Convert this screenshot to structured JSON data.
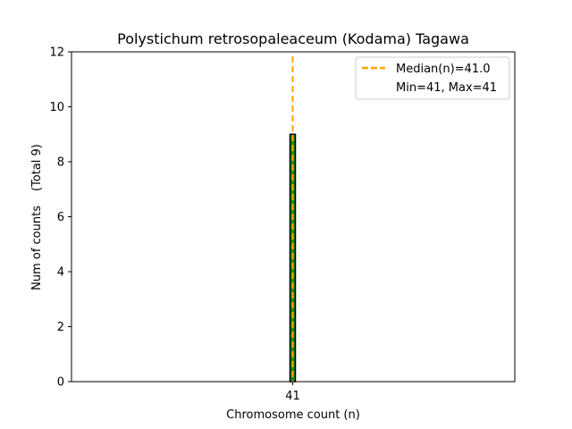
{
  "chart_data": {
    "type": "bar",
    "title": "Polystichum retrosopaleaceum (Kodama) Tagawa",
    "xlabel": "Chromosome count (n)",
    "ylabel": "Num of counts",
    "ylabel_total": "(Total 9)",
    "categories": [
      "41"
    ],
    "values": [
      9
    ],
    "ylim": [
      0,
      12
    ],
    "yticks": [
      0,
      2,
      4,
      6,
      8,
      10,
      12
    ],
    "median": 41.0,
    "legend": {
      "placement": "top-right",
      "entries": [
        "Median(n)=41.0",
        "Min=41, Max=41"
      ]
    },
    "colors": {
      "bar_fill": "#1a8a1a",
      "bar_edge": "#000000",
      "bar_inner_dash": "#1a8a1a",
      "median_line": "#ffa500"
    },
    "grid": false
  }
}
